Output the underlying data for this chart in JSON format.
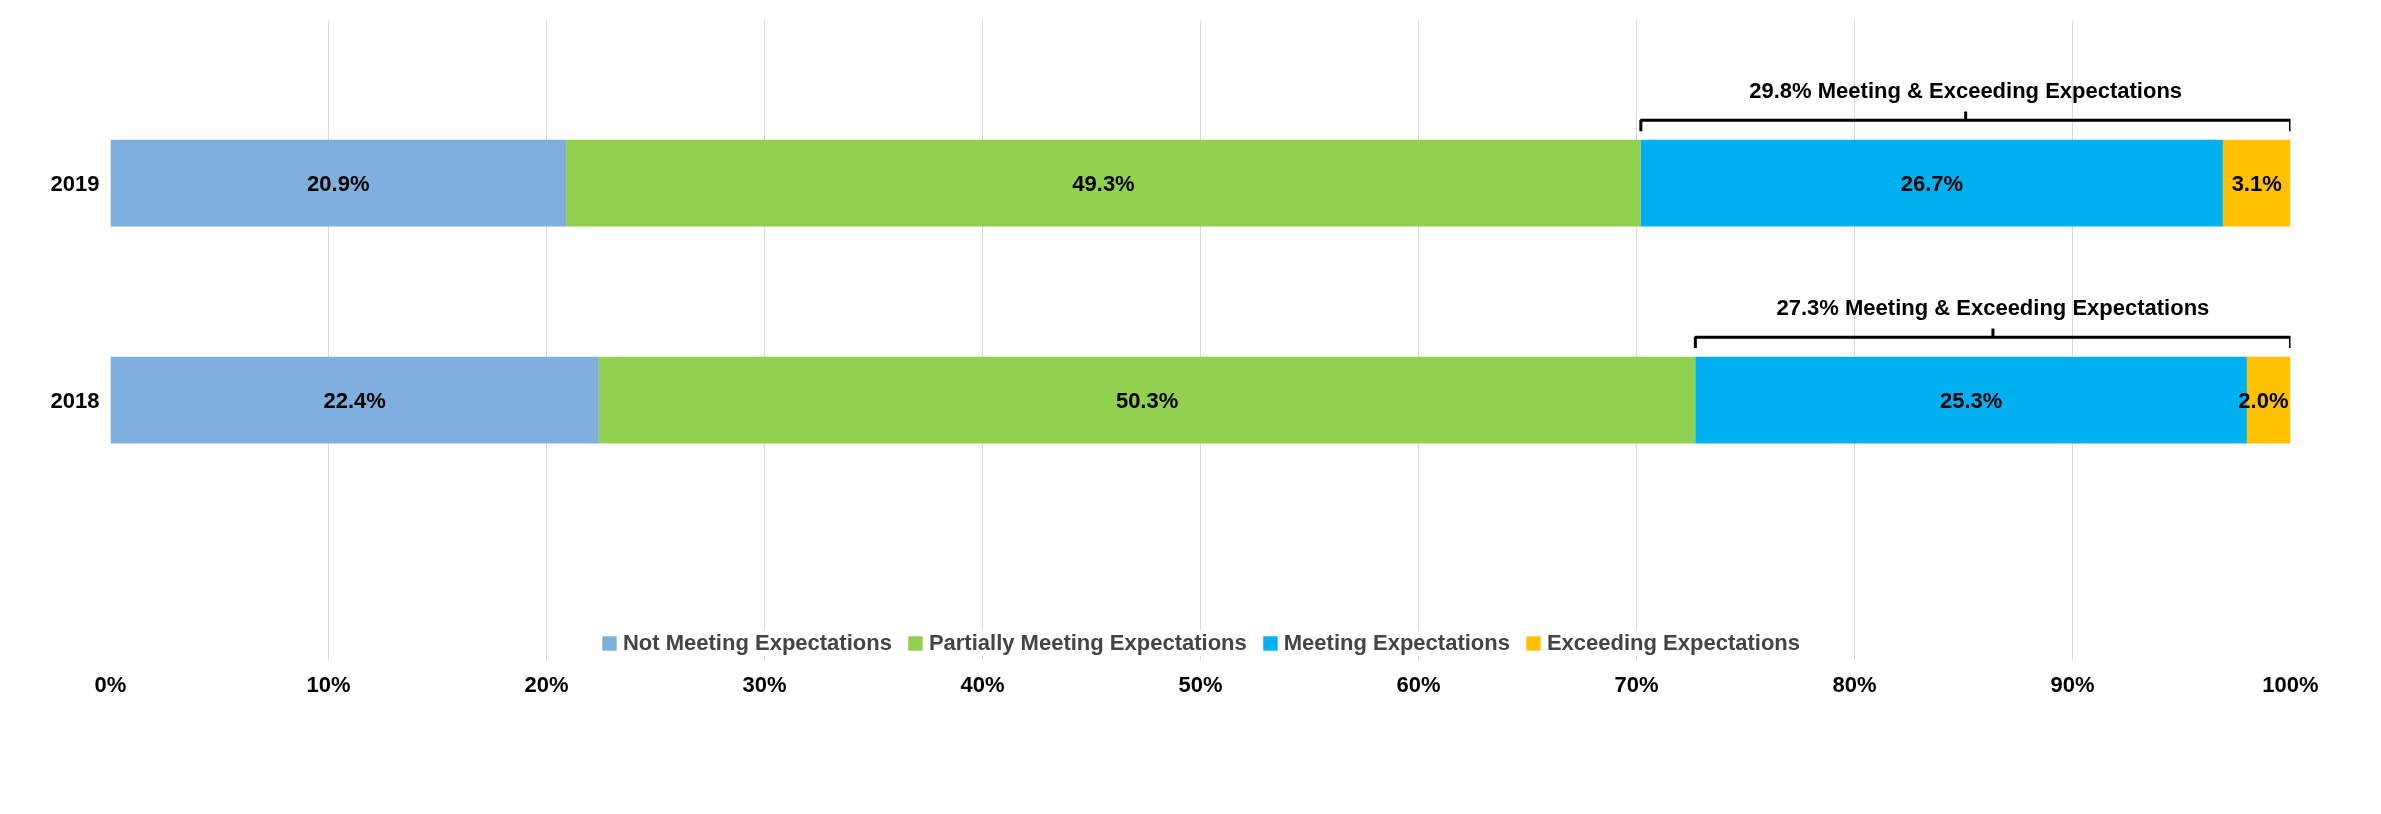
{
  "chart_data": {
    "type": "bar",
    "orientation": "horizontal",
    "stacked": true,
    "categories": [
      "2019",
      "2018"
    ],
    "series": [
      {
        "name": "Not Meeting Expectations",
        "color": "#7eb0dd",
        "values": [
          20.9,
          22.4
        ],
        "value_labels": [
          "20.9%",
          "22.4%"
        ]
      },
      {
        "name": "Partially Meeting Expectations",
        "color": "#92d050",
        "values": [
          49.3,
          50.3
        ],
        "value_labels": [
          "49.3%",
          "50.3%"
        ]
      },
      {
        "name": "Meeting Expectations",
        "color": "#00b0f0",
        "values": [
          26.7,
          25.3
        ],
        "value_labels": [
          "26.7%",
          "25.3%"
        ]
      },
      {
        "name": "Exceeding Expectations",
        "color": "#ffc000",
        "values": [
          3.1,
          2.0
        ],
        "value_labels": [
          "3.1%",
          "2.0%"
        ]
      }
    ],
    "xlim": [
      0,
      100
    ],
    "xticks": [
      {
        "value": 0,
        "label": "0%"
      },
      {
        "value": 10,
        "label": "10%"
      },
      {
        "value": 20,
        "label": "20%"
      },
      {
        "value": 30,
        "label": "30%"
      },
      {
        "value": 40,
        "label": "40%"
      },
      {
        "value": 50,
        "label": "50%"
      },
      {
        "value": 60,
        "label": "60%"
      },
      {
        "value": 70,
        "label": "70%"
      },
      {
        "value": 80,
        "label": "80%"
      },
      {
        "value": 90,
        "label": "90%"
      },
      {
        "value": 100,
        "label": "100%"
      }
    ],
    "annotations": [
      "29.8% Meeting & Exceeding Expectations",
      "27.3% Meeting & Exceeding Expectations"
    ],
    "grid": "x",
    "legend": "bottom"
  }
}
